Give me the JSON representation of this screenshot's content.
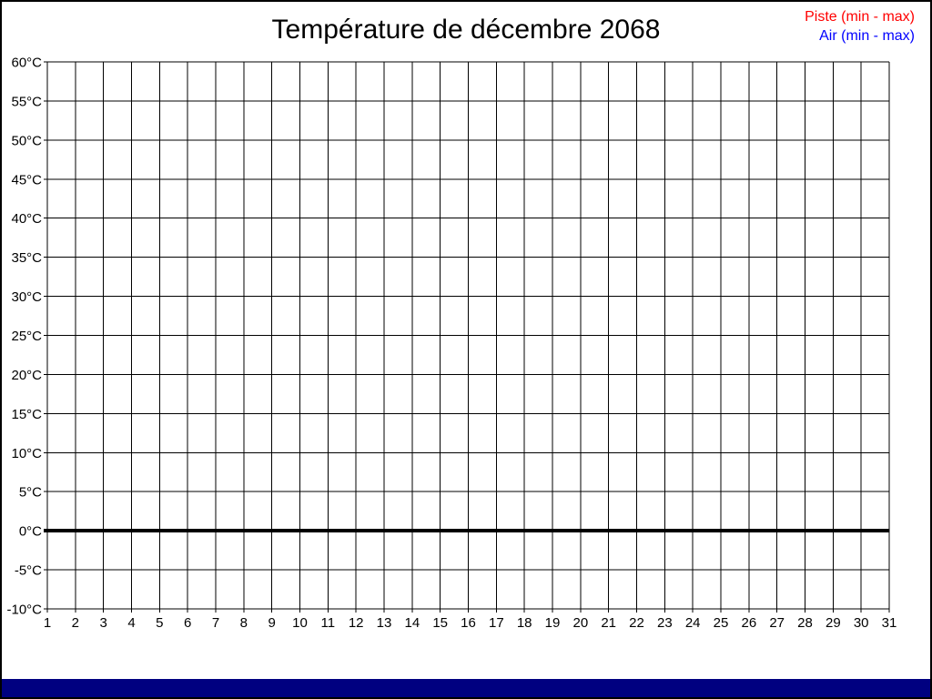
{
  "title": "Température de décembre 2068",
  "legend": {
    "position": "top-right",
    "items": [
      {
        "label": "Piste (min - max)",
        "color": "#ff0000"
      },
      {
        "label": "Air (min - max)",
        "color": "#0000ff"
      }
    ]
  },
  "chart_data": {
    "type": "line",
    "title": "Température de décembre 2068",
    "xlabel": "",
    "ylabel": "",
    "x_ticks": [
      "1",
      "2",
      "3",
      "4",
      "5",
      "6",
      "7",
      "8",
      "9",
      "10",
      "11",
      "12",
      "13",
      "14",
      "15",
      "16",
      "17",
      "18",
      "19",
      "20",
      "21",
      "22",
      "23",
      "24",
      "25",
      "26",
      "27",
      "28",
      "29",
      "30",
      "31"
    ],
    "y_ticks": [
      "60°C",
      "55°C",
      "50°C",
      "45°C",
      "40°C",
      "35°C",
      "30°C",
      "25°C",
      "20°C",
      "15°C",
      "10°C",
      "5°C",
      "0°C",
      "-5°C",
      "-10°C"
    ],
    "xlim": [
      1,
      31
    ],
    "ylim": [
      -10,
      60
    ],
    "y_step": 5,
    "grid": true,
    "zero_line_value": 0,
    "zero_line_thick": true,
    "legend_position": "top-right",
    "series": [
      {
        "name": "Piste (min - max)",
        "color": "#ff0000",
        "x": [],
        "values": []
      },
      {
        "name": "Air (min - max)",
        "color": "#0000ff",
        "x": [],
        "values": []
      }
    ],
    "note": "empty chart — no data points plotted"
  },
  "colors": {
    "background": "#ffffff",
    "border": "#000000",
    "grid": "#000000",
    "tick_labels": "#000000",
    "title": "#000000",
    "footer_bar": "#000080"
  }
}
